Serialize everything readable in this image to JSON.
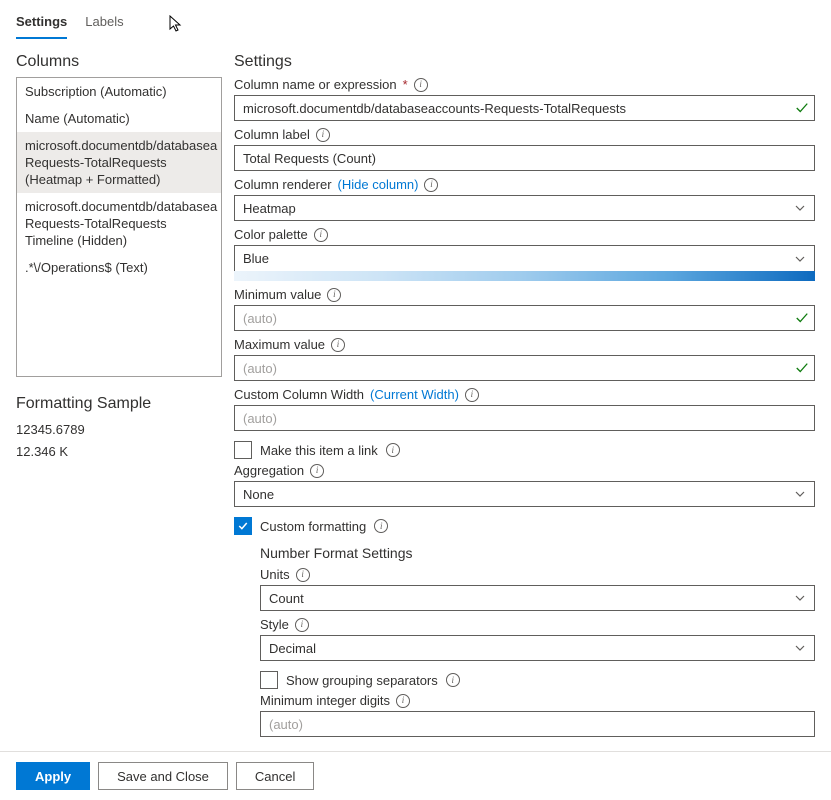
{
  "tabs": {
    "settings": "Settings",
    "labels": "Labels"
  },
  "left": {
    "columns_title": "Columns",
    "items": [
      "Subscription (Automatic)",
      "Name (Automatic)",
      "microsoft.documentdb/databasea Requests-TotalRequests (Heatmap + Formatted)",
      "microsoft.documentdb/databasea Requests-TotalRequests Timeline (Hidden)",
      ".*\\/Operations$ (Text)"
    ],
    "selected_index": 2,
    "sample_title": "Formatting Sample",
    "sample_lines": [
      "12345.6789",
      "12.346 K"
    ]
  },
  "right": {
    "title": "Settings",
    "column_name_label": "Column name or expression",
    "column_name_value": "microsoft.documentdb/databaseaccounts-Requests-TotalRequests",
    "column_label_label": "Column label",
    "column_label_value": "Total Requests (Count)",
    "column_renderer_label": "Column renderer",
    "hide_column_link": "(Hide column)",
    "column_renderer_value": "Heatmap",
    "color_palette_label": "Color palette",
    "color_palette_value": "Blue",
    "palette_gradient": [
      "#ecf4fb",
      "#cde4f6",
      "#9ecbed",
      "#5ba6de",
      "#0d6abf"
    ],
    "min_value_label": "Minimum value",
    "min_value_placeholder": "(auto)",
    "max_value_label": "Maximum value",
    "max_value_placeholder": "(auto)",
    "custom_width_label": "Custom Column Width",
    "current_width_link": "(Current Width)",
    "custom_width_placeholder": "(auto)",
    "make_link_label": "Make this item a link",
    "aggregation_label": "Aggregation",
    "aggregation_value": "None",
    "custom_formatting_label": "Custom formatting",
    "nf_title": "Number Format Settings",
    "units_label": "Units",
    "units_value": "Count",
    "style_label": "Style",
    "style_value": "Decimal",
    "grouping_label": "Show grouping separators",
    "min_int_digits_label": "Minimum integer digits",
    "min_int_digits_placeholder": "(auto)"
  },
  "footer": {
    "apply": "Apply",
    "save_close": "Save and Close",
    "cancel": "Cancel"
  }
}
